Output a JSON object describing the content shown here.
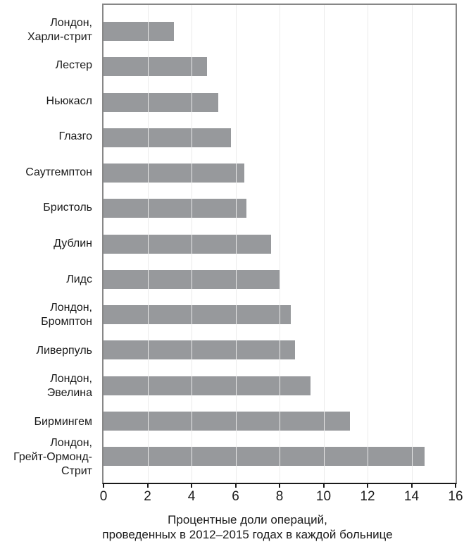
{
  "figure": {
    "xlabel_line1": "Процентные доли операций,",
    "xlabel_line2": "проведенных в 2012–2015 годах в каждой больнице"
  },
  "chart_data": {
    "type": "bar",
    "orientation": "horizontal",
    "title": "",
    "xlabel": "Процентные доли операций, проведенных в 2012–2015 годах в каждой больнице",
    "ylabel": "",
    "xlim": [
      0,
      16
    ],
    "xticks": [
      0,
      2,
      4,
      6,
      8,
      10,
      12,
      14,
      16
    ],
    "grid": true,
    "legend": "none",
    "bar_color": "#97999c",
    "frame_color": "#878787",
    "axis_color": "#1a1a1a",
    "gridline_color": "#ebebeb",
    "categories": [
      "Лондон,\nХарли-стрит",
      "Лестер",
      "Ньюкасл",
      "Глазго",
      "Саутгемптон",
      "Бристоль",
      "Дублин",
      "Лидс",
      "Лондон,\nБромптон",
      "Ливерпуль",
      "Лондон,\nЭвелина",
      "Бирмингем",
      "Лондон,\nГрейт-Ормонд-\nСтрит"
    ],
    "values": [
      3.2,
      4.7,
      5.2,
      5.8,
      6.4,
      6.5,
      7.6,
      8.0,
      8.5,
      8.7,
      9.4,
      11.2,
      14.6
    ]
  }
}
